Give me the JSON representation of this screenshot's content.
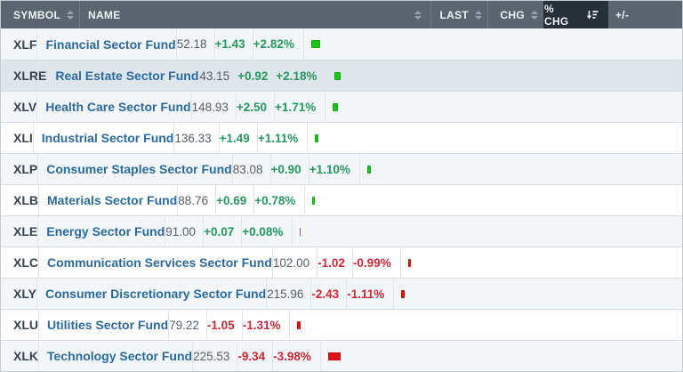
{
  "table": {
    "columns": {
      "symbol": {
        "label": "SYMBOL",
        "sortable": true
      },
      "name": {
        "label": "NAME",
        "sortable": true
      },
      "last": {
        "label": "LAST",
        "sortable": true
      },
      "chg": {
        "label": "CHG",
        "sortable": true
      },
      "pchg": {
        "label": "% CHG",
        "sortable": true,
        "sorted": "desc"
      },
      "bar": {
        "label": "+/-",
        "sortable": false
      }
    },
    "rows": [
      {
        "symbol": "XLF",
        "name": "Financial Sector Fund",
        "last": "52.18",
        "chg": "+1.43",
        "pchg": "+2.82%",
        "pct": 2.82,
        "direction": "up",
        "highlighted": false
      },
      {
        "symbol": "XLRE",
        "name": "Real Estate Sector Fund",
        "last": "43.15",
        "chg": "+0.92",
        "pchg": "+2.18%",
        "pct": 2.18,
        "direction": "up",
        "highlighted": true
      },
      {
        "symbol": "XLV",
        "name": "Health Care Sector Fund",
        "last": "148.93",
        "chg": "+2.50",
        "pchg": "+1.71%",
        "pct": 1.71,
        "direction": "up",
        "highlighted": false
      },
      {
        "symbol": "XLI",
        "name": "Industrial Sector Fund",
        "last": "136.33",
        "chg": "+1.49",
        "pchg": "+1.11%",
        "pct": 1.11,
        "direction": "up",
        "highlighted": false
      },
      {
        "symbol": "XLP",
        "name": "Consumer Staples Sector Fund",
        "last": "83.08",
        "chg": "+0.90",
        "pchg": "+1.10%",
        "pct": 1.1,
        "direction": "up",
        "highlighted": false
      },
      {
        "symbol": "XLB",
        "name": "Materials Sector Fund",
        "last": "88.76",
        "chg": "+0.69",
        "pchg": "+0.78%",
        "pct": 0.78,
        "direction": "up",
        "highlighted": false
      },
      {
        "symbol": "XLE",
        "name": "Energy Sector Fund",
        "last": "91.00",
        "chg": "+0.07",
        "pchg": "+0.08%",
        "pct": 0.08,
        "direction": "up",
        "highlighted": false
      },
      {
        "symbol": "XLC",
        "name": "Communication Services Sector Fund",
        "last": "102.00",
        "chg": "-1.02",
        "pchg": "-0.99%",
        "pct": 0.99,
        "direction": "down",
        "highlighted": false
      },
      {
        "symbol": "XLY",
        "name": "Consumer Discretionary Sector Fund",
        "last": "215.96",
        "chg": "-2.43",
        "pchg": "-1.11%",
        "pct": 1.11,
        "direction": "down",
        "highlighted": false
      },
      {
        "symbol": "XLU",
        "name": "Utilities Sector Fund",
        "last": "79.22",
        "chg": "-1.05",
        "pchg": "-1.31%",
        "pct": 1.31,
        "direction": "down",
        "highlighted": false
      },
      {
        "symbol": "XLK",
        "name": "Technology Sector Fund",
        "last": "225.53",
        "chg": "-9.34",
        "pchg": "-3.98%",
        "pct": 3.98,
        "direction": "down",
        "highlighted": false
      }
    ]
  },
  "colors": {
    "header_bg": "#5a6570",
    "sorted_header_bg": "#272f38",
    "row_odd_bg": "#f2f6f9",
    "row_even_bg": "#ffffff",
    "row_highlight_bg": "#dee6ec",
    "positive_text": "#27985f",
    "negative_text": "#cc2936",
    "positive_bar": "#17c417",
    "negative_bar": "#de1212",
    "name_link": "#2b6a9e"
  },
  "icons": {
    "sort_unsorted": "sort-icon",
    "sort_descending": "sort-desc-icon"
  }
}
